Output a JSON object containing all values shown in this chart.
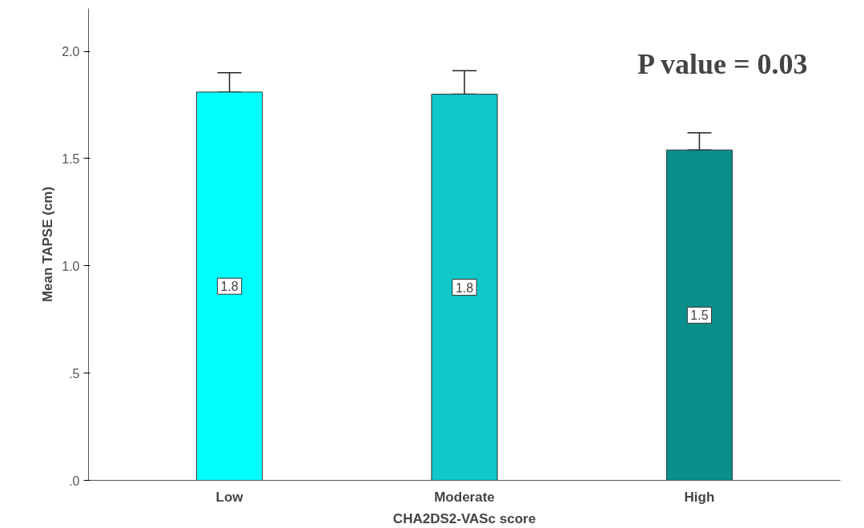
{
  "chart_data": {
    "type": "bar",
    "xlabel": "CHA2DS2-VASc score",
    "ylabel": "Mean TAPSE (cm)",
    "categories": [
      "Low",
      "Moderate",
      "High"
    ],
    "values": [
      1.81,
      1.8,
      1.54
    ],
    "colors": [
      "#00ffff",
      "#10c8c8",
      "#0a8f8c"
    ],
    "errors": [
      [
        1.81,
        1.9
      ],
      [
        1.8,
        1.91
      ],
      [
        1.54,
        1.62
      ]
    ],
    "value_labels": [
      "1.8",
      "1.8",
      "1.5"
    ],
    "ylim": [
      0,
      2.2
    ],
    "yticks": [
      {
        "value": 0,
        "label": ".0"
      },
      {
        "value": 0.5,
        "label": ".5"
      },
      {
        "value": 1.0,
        "label": "1.0"
      },
      {
        "value": 1.5,
        "label": "1.5"
      },
      {
        "value": 2.0,
        "label": "2.0"
      }
    ],
    "annotations": [
      "P value = 0.03"
    ],
    "grid": false
  }
}
